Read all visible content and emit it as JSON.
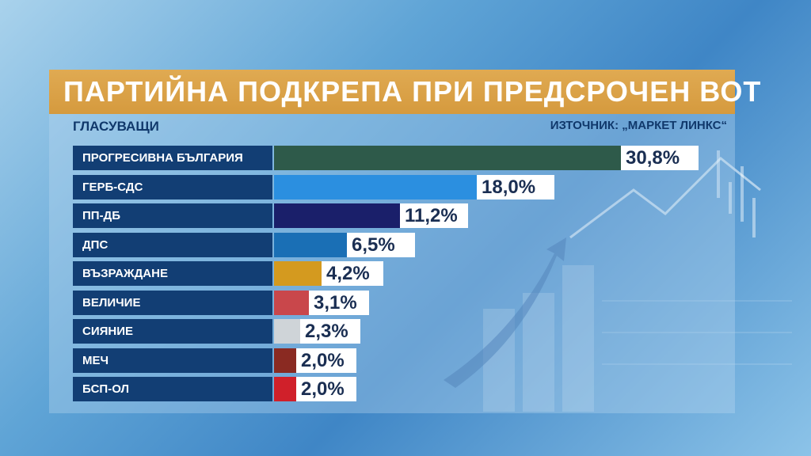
{
  "title": "ПАРТИЙНА ПОДКРЕПА ПРИ ПРЕДСРОЧЕН ВОТ",
  "subtitle_left": "ГЛАСУВАЩИ",
  "source": "ИЗТОЧНИК: „МАРКЕТ ЛИНКС“",
  "chart_data": {
    "type": "bar",
    "orientation": "horizontal",
    "title": "ПАРТИЙНА ПОДКРЕПА ПРИ ПРЕДСРОЧЕН ВОТ",
    "categories": [
      "ПРОГРЕСИВНА БЪЛГАРИЯ",
      "ГЕРБ-СДС",
      "ПП-ДБ",
      "ДПС",
      "ВЪЗРАЖДАНЕ",
      "ВЕЛИЧИЕ",
      "СИЯНИЕ",
      "МЕЧ",
      "БСП-ОЛ"
    ],
    "values": [
      30.8,
      18.0,
      11.2,
      6.5,
      4.2,
      3.1,
      2.3,
      2.0,
      2.0
    ],
    "value_labels": [
      "30,8%",
      "18,0%",
      "11,2%",
      "6,5%",
      "4,2%",
      "3,1%",
      "2,3%",
      "2,0%",
      "2,0%"
    ],
    "colors": [
      "#2e5a4a",
      "#2b8fe0",
      "#1a1f6a",
      "#1a6fb5",
      "#d49a1f",
      "#c9474b",
      "#cfd4d8",
      "#8a2a22",
      "#d0202a"
    ],
    "unit": "%"
  }
}
